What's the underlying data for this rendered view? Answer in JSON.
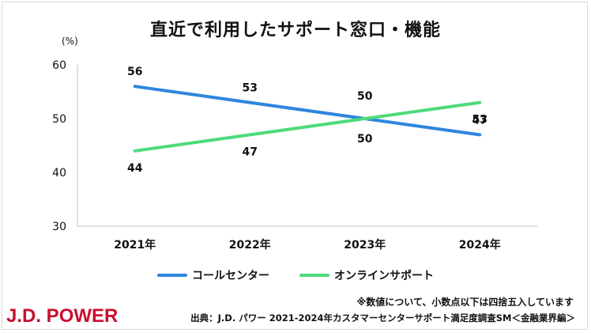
{
  "title": "直近で利用したサポート窓口・機能",
  "unit_label": "(%)",
  "logo": "J.D. POWER",
  "note": "※数値について、小数点以下は四捨五入しています",
  "source": "出典：J.D. パワー 2021-2024年カスタマーセンターサポート満足度調査SM＜金融業界編＞",
  "colors": {
    "call_center": "#2e86de",
    "online": "#4ddb7a"
  },
  "chart_data": {
    "type": "line",
    "title": "直近で利用したサポート窓口・機能",
    "categories": [
      "2021年",
      "2022年",
      "2023年",
      "2024年"
    ],
    "ylim": [
      30,
      60
    ],
    "yticks": [
      30,
      40,
      50,
      60
    ],
    "ylabel": "(%)",
    "legend_position": "bottom",
    "grid": false,
    "series": [
      {
        "name": "コールセンター",
        "values": [
          56,
          53,
          50,
          47
        ],
        "color": "#2e86de"
      },
      {
        "name": "オンラインサポート",
        "values": [
          44,
          47,
          50,
          53
        ],
        "color": "#4ddb7a"
      }
    ]
  }
}
